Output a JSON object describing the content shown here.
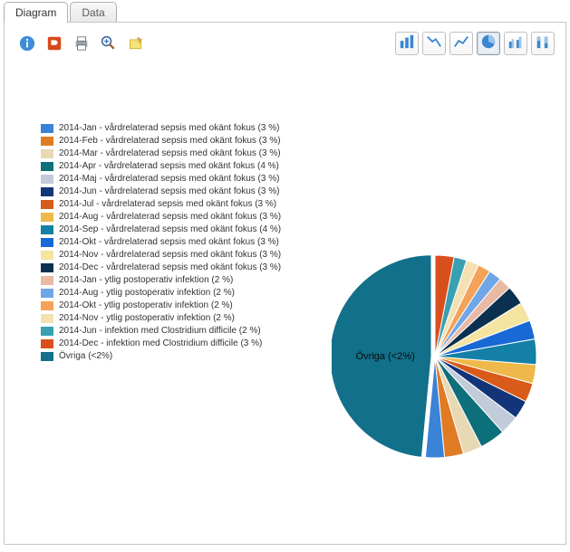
{
  "tabs": {
    "diagram": "Diagram",
    "data": "Data"
  },
  "toolbar_left_icons": [
    "info",
    "presentation",
    "print",
    "zoom",
    "note"
  ],
  "toolbar_right_icons": [
    "bar",
    "line-down",
    "line-up",
    "pie",
    "bar-grouped",
    "bar-stacked"
  ],
  "selected_chart_type": "pie",
  "pie": {
    "type": "pie",
    "radius": 112,
    "background_color": "#ffffff",
    "dominant_label": "Övriga (<2%)",
    "slices": [
      {
        "label": "2014-Jan - vårdrelaterad sepsis med okänt fokus (3 %)",
        "value": 3,
        "color": "#3a83d6"
      },
      {
        "label": "2014-Feb - vårdrelaterad sepsis med okänt fokus (3 %)",
        "value": 3,
        "color": "#e07b23"
      },
      {
        "label": "2014-Mar - vårdrelaterad sepsis med okänt fokus (3 %)",
        "value": 3,
        "color": "#e8d9b5"
      },
      {
        "label": "2014-Apr - vårdrelaterad sepsis med okänt fokus (4 %)",
        "value": 4,
        "color": "#0d6f7a"
      },
      {
        "label": "2014-Maj - vårdrelaterad sepsis med okänt fokus (3 %)",
        "value": 3,
        "color": "#c2cbda"
      },
      {
        "label": "2014-Jun - vårdrelaterad sepsis med okänt fokus (3 %)",
        "value": 3,
        "color": "#12357a"
      },
      {
        "label": "2014-Jul - vårdrelaterad sepsis med okänt fokus (3 %)",
        "value": 3,
        "color": "#d95b1a"
      },
      {
        "label": "2014-Aug - vårdrelaterad sepsis med okänt fokus (3 %)",
        "value": 3,
        "color": "#eeb94a"
      },
      {
        "label": "2014-Sep - vårdrelaterad sepsis med okänt fokus (4 %)",
        "value": 4,
        "color": "#1480a6"
      },
      {
        "label": "2014-Okt - vårdrelaterad sepsis med okänt fokus (3 %)",
        "value": 3,
        "color": "#1869d6"
      },
      {
        "label": "2014-Nov - vårdrelaterad sepsis med okänt fokus (3 %)",
        "value": 3,
        "color": "#f5e3a0"
      },
      {
        "label": "2014-Dec - vårdrelaterad sepsis med okänt fokus (3 %)",
        "value": 3,
        "color": "#0b3050"
      },
      {
        "label": "2014-Jan - ytlig postoperativ infektion (2 %)",
        "value": 2,
        "color": "#e8b9a3"
      },
      {
        "label": "2014-Aug - ytlig postoperativ infektion (2 %)",
        "value": 2,
        "color": "#6fa6e8"
      },
      {
        "label": "2014-Okt - ytlig postoperativ infektion (2 %)",
        "value": 2,
        "color": "#f4a15a"
      },
      {
        "label": "2014-Nov - ytlig postoperativ infektion (2 %)",
        "value": 2,
        "color": "#f4e0b1"
      },
      {
        "label": "2014-Jun - infektion med Clostridium difficile (2 %)",
        "value": 2,
        "color": "#39a0b2"
      },
      {
        "label": "2014-Dec - infektion med Clostridium difficile (3 %)",
        "value": 3,
        "color": "#d94f1c"
      },
      {
        "label": "Övriga (<2%)",
        "value": 48,
        "color": "#12708a",
        "is_other": true
      }
    ]
  }
}
